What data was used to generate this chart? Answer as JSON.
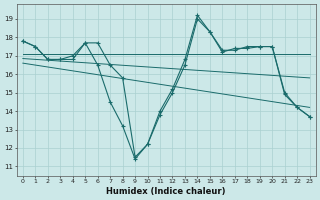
{
  "title": "",
  "xlabel": "Humidex (Indice chaleur)",
  "bg_color": "#cce8e8",
  "line_color": "#1a6b6b",
  "grid_color": "#aad0d0",
  "xlim": [
    -0.5,
    23.5
  ],
  "ylim": [
    10.5,
    19.8
  ],
  "yticks": [
    11,
    12,
    13,
    14,
    15,
    16,
    17,
    18,
    19
  ],
  "xticks": [
    0,
    1,
    2,
    3,
    4,
    5,
    6,
    7,
    8,
    9,
    10,
    11,
    12,
    13,
    14,
    15,
    16,
    17,
    18,
    19,
    20,
    21,
    22,
    23
  ],
  "series1": {
    "x": [
      0,
      1,
      2,
      3,
      4,
      5,
      6,
      7,
      8,
      9,
      10,
      11,
      12,
      13,
      14,
      15,
      16,
      17,
      18,
      19,
      20,
      21,
      22,
      23
    ],
    "y": [
      17.8,
      17.5,
      16.8,
      16.8,
      16.8,
      17.7,
      17.7,
      16.5,
      15.8,
      11.5,
      12.2,
      13.8,
      15.0,
      16.5,
      19.0,
      18.3,
      17.2,
      17.4,
      17.4,
      17.5,
      17.5,
      15.0,
      14.2,
      13.7
    ]
  },
  "series2": {
    "x": [
      0,
      1,
      2,
      3,
      4,
      5,
      6,
      7,
      8,
      9,
      10,
      11,
      12,
      13,
      14,
      15,
      16,
      17,
      18,
      19,
      20,
      21,
      22,
      23
    ],
    "y": [
      17.8,
      17.5,
      16.8,
      16.8,
      17.0,
      17.7,
      16.5,
      14.5,
      13.2,
      11.4,
      12.2,
      14.0,
      15.2,
      16.8,
      19.2,
      18.3,
      17.3,
      17.3,
      17.5,
      17.5,
      17.5,
      14.9,
      14.2,
      13.7
    ]
  },
  "trend1": {
    "x": [
      0,
      23
    ],
    "y": [
      17.1,
      17.1
    ]
  },
  "trend2": {
    "x": [
      0,
      23
    ],
    "y": [
      16.85,
      15.8
    ]
  },
  "trend3": {
    "x": [
      0,
      23
    ],
    "y": [
      16.6,
      14.2
    ]
  }
}
